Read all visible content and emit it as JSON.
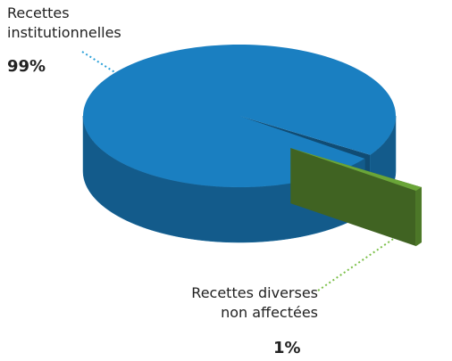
{
  "chart_data": {
    "type": "pie",
    "categories": [
      "Recettes institutionnelles",
      "Recettes diverses non affectées"
    ],
    "values": [
      99,
      1
    ],
    "value_labels": [
      "99%",
      "1%"
    ],
    "colors": [
      "#1a7fc1",
      "#6aa538"
    ]
  }
}
